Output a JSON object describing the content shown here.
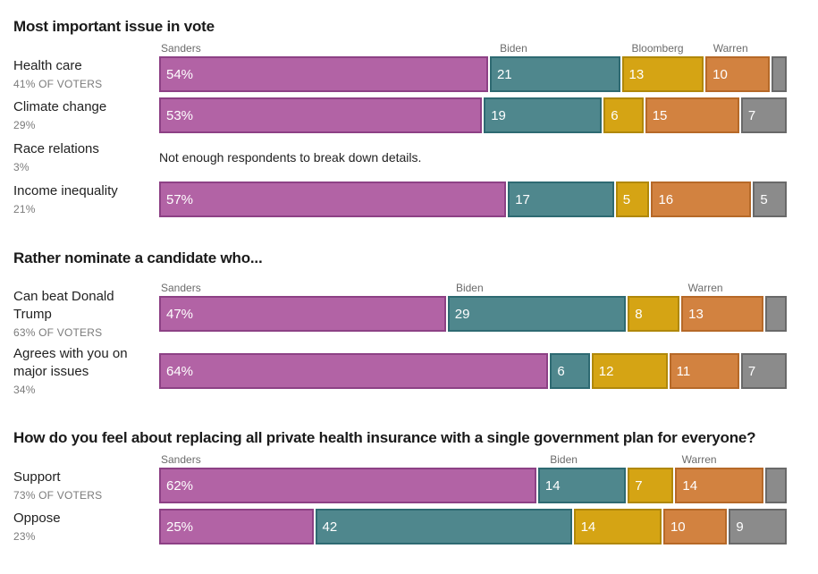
{
  "chart_data": {
    "type": "bar",
    "orientation": "horizontal",
    "stacked": true,
    "unit": "%",
    "axis_range": [
      0,
      100
    ],
    "grid": false,
    "legend_position": "above-first-bar-per-section",
    "colors": {
      "sanders": {
        "fill": "#b263a5",
        "border": "#8d4185"
      },
      "biden": {
        "fill": "#4f878d",
        "border": "#2e6a72"
      },
      "bloomberg": {
        "fill": "#d5a414",
        "border": "#b0880a"
      },
      "warren": {
        "fill": "#d28240",
        "border": "#b66928"
      },
      "other": {
        "fill": "#8b8b8b",
        "border": "#696969"
      }
    },
    "sections": [
      {
        "title": "Most important issue in vote",
        "candidates": [
          {
            "name": "Sanders",
            "pos": 0
          },
          {
            "name": "Biden",
            "pos": 54
          },
          {
            "name": "Bloomberg",
            "pos": 75
          },
          {
            "name": "Warren",
            "pos": 88
          }
        ],
        "rows": [
          {
            "label": "Health care",
            "sublabel": "41% OF VOTERS",
            "segments": [
              {
                "party": "sanders",
                "value": 54,
                "text": "54%"
              },
              {
                "party": "biden",
                "value": 21,
                "text": "21"
              },
              {
                "party": "bloomberg",
                "value": 13,
                "text": "13"
              },
              {
                "party": "warren",
                "value": 10,
                "text": "10"
              },
              {
                "party": "other",
                "value": 2,
                "text": ""
              }
            ]
          },
          {
            "label": "Climate change",
            "sublabel": "29%",
            "segments": [
              {
                "party": "sanders",
                "value": 53,
                "text": "53%"
              },
              {
                "party": "biden",
                "value": 19,
                "text": "19"
              },
              {
                "party": "bloomberg",
                "value": 6,
                "text": "6"
              },
              {
                "party": "warren",
                "value": 15,
                "text": "15"
              },
              {
                "party": "other",
                "value": 7,
                "text": "7"
              }
            ]
          },
          {
            "label": "Race relations",
            "sublabel": "3%",
            "note": "Not enough respondents to break down details."
          },
          {
            "label": "Income inequality",
            "sublabel": "21%",
            "segments": [
              {
                "party": "sanders",
                "value": 57,
                "text": "57%"
              },
              {
                "party": "biden",
                "value": 17,
                "text": "17"
              },
              {
                "party": "bloomberg",
                "value": 5,
                "text": "5"
              },
              {
                "party": "warren",
                "value": 16,
                "text": "16"
              },
              {
                "party": "other",
                "value": 5,
                "text": "5"
              }
            ]
          }
        ]
      },
      {
        "title": "Rather nominate a candidate who...",
        "candidates": [
          {
            "name": "Sanders",
            "pos": 0
          },
          {
            "name": "Biden",
            "pos": 47
          },
          {
            "name": "Warren",
            "pos": 84
          }
        ],
        "rows": [
          {
            "label": "Can beat Donald Trump",
            "sublabel": "63% OF VOTERS",
            "segments": [
              {
                "party": "sanders",
                "value": 47,
                "text": "47%"
              },
              {
                "party": "biden",
                "value": 29,
                "text": "29"
              },
              {
                "party": "bloomberg",
                "value": 8,
                "text": "8"
              },
              {
                "party": "warren",
                "value": 13,
                "text": "13"
              },
              {
                "party": "other",
                "value": 3,
                "text": ""
              }
            ]
          },
          {
            "label": "Agrees with you on major issues",
            "sublabel": "34%",
            "segments": [
              {
                "party": "sanders",
                "value": 64,
                "text": "64%"
              },
              {
                "party": "biden",
                "value": 6,
                "text": "6"
              },
              {
                "party": "bloomberg",
                "value": 12,
                "text": "12"
              },
              {
                "party": "warren",
                "value": 11,
                "text": "11"
              },
              {
                "party": "other",
                "value": 7,
                "text": "7"
              }
            ]
          }
        ]
      },
      {
        "title": "How do you feel about replacing all private health insurance with a single government plan for everyone?",
        "candidates": [
          {
            "name": "Sanders",
            "pos": 0
          },
          {
            "name": "Biden",
            "pos": 62
          },
          {
            "name": "Warren",
            "pos": 83
          }
        ],
        "rows": [
          {
            "label": "Support",
            "sublabel": "73% OF VOTERS",
            "segments": [
              {
                "party": "sanders",
                "value": 62,
                "text": "62%"
              },
              {
                "party": "biden",
                "value": 14,
                "text": "14"
              },
              {
                "party": "bloomberg",
                "value": 7,
                "text": "7"
              },
              {
                "party": "warren",
                "value": 14,
                "text": "14"
              },
              {
                "party": "other",
                "value": 3,
                "text": ""
              }
            ]
          },
          {
            "label": "Oppose",
            "sublabel": "23%",
            "segments": [
              {
                "party": "sanders",
                "value": 25,
                "text": "25%"
              },
              {
                "party": "biden",
                "value": 42,
                "text": "42"
              },
              {
                "party": "bloomberg",
                "value": 14,
                "text": "14"
              },
              {
                "party": "warren",
                "value": 10,
                "text": "10"
              },
              {
                "party": "other",
                "value": 9,
                "text": "9"
              }
            ]
          }
        ]
      }
    ]
  }
}
